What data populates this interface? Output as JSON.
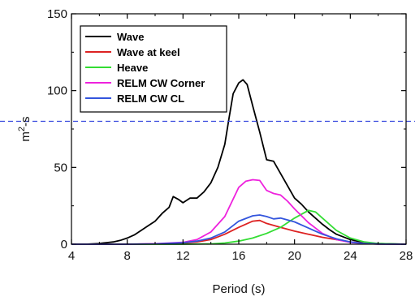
{
  "chart_data": {
    "type": "line",
    "title": "",
    "xlabel": "Period (s)",
    "ylabel": "m²-s",
    "ylabel_base": "m",
    "ylabel_sup": "2",
    "ylabel_suffix": "-s",
    "xlim": [
      4,
      28
    ],
    "ylim": [
      0,
      150
    ],
    "xticks": [
      4,
      8,
      12,
      16,
      20,
      24,
      28
    ],
    "xtick_labels": [
      "4",
      "8",
      "12",
      "16",
      "20",
      "24",
      "28"
    ],
    "yticks": [
      0,
      50,
      100,
      150
    ],
    "ytick_labels": [
      "0",
      "50",
      "100",
      "150"
    ],
    "grid": false,
    "legend_position": "top-left",
    "reference_line": {
      "y": 80,
      "style": "dashed",
      "color": "#3344dd"
    },
    "series": [
      {
        "name": "Wave",
        "color": "#000000",
        "x": [
          4,
          5,
          6,
          6.5,
          7,
          7.5,
          8,
          8.5,
          9,
          9.5,
          10,
          10.5,
          11,
          11.3,
          11.7,
          12,
          12.5,
          13,
          13.5,
          14,
          14.5,
          15,
          15.3,
          15.6,
          16,
          16.3,
          16.6,
          17,
          17.5,
          18,
          18.5,
          19,
          19.5,
          20,
          20.5,
          21,
          21.5,
          22,
          22.5,
          23,
          24,
          25,
          26,
          27,
          28
        ],
        "y": [
          0,
          0,
          0.5,
          1,
          1.5,
          2.5,
          4,
          6,
          9,
          12,
          15,
          20,
          24,
          31,
          29,
          27,
          30,
          30,
          34,
          40,
          50,
          65,
          82,
          98,
          105,
          107,
          104,
          90,
          73,
          55,
          54,
          46,
          38,
          30,
          26,
          21,
          17,
          13,
          9.5,
          6.5,
          3,
          1,
          0.5,
          0.2,
          0
        ]
      },
      {
        "name": "Wave at keel",
        "color": "#dd2222",
        "x": [
          4,
          8,
          10,
          12,
          13,
          14,
          15,
          16,
          17,
          17.5,
          18,
          19,
          20,
          21,
          22,
          23,
          24,
          25,
          26,
          28
        ],
        "y": [
          0,
          0,
          0.2,
          0.8,
          1.5,
          3,
          6.5,
          11,
          15,
          15.5,
          13.5,
          11,
          8.5,
          6.5,
          4.5,
          3,
          1.5,
          0.6,
          0.2,
          0
        ]
      },
      {
        "name": "Heave",
        "color": "#33dd33",
        "x": [
          4,
          12,
          14,
          15,
          16,
          17,
          18,
          19,
          20,
          21,
          21.5,
          22,
          23,
          24,
          25,
          26,
          28
        ],
        "y": [
          0,
          0,
          0.2,
          0.8,
          2,
          4,
          7,
          11,
          17,
          22,
          21,
          17,
          9,
          4,
          1.5,
          0.4,
          0
        ]
      },
      {
        "name": "RELM CW Corner",
        "color": "#ee22dd",
        "x": [
          4,
          8,
          10,
          12,
          13,
          14,
          15,
          16,
          16.5,
          17,
          17.5,
          18,
          18.5,
          19,
          19.5,
          20,
          21,
          22,
          23,
          24,
          25,
          26,
          28
        ],
        "y": [
          0,
          0,
          0.3,
          1.2,
          3,
          8,
          18,
          37,
          41,
          42,
          41.5,
          35,
          33,
          32,
          28,
          23,
          14,
          7,
          3,
          1.2,
          0.4,
          0.1,
          0
        ]
      },
      {
        "name": "RELM CW CL",
        "color": "#3355dd",
        "x": [
          4,
          8,
          10,
          12,
          13,
          14,
          15,
          16,
          17,
          17.5,
          18,
          18.5,
          19,
          20,
          21,
          22,
          23,
          24,
          25,
          26,
          28
        ],
        "y": [
          0,
          0,
          0.2,
          1,
          2,
          4,
          8,
          15,
          18.5,
          19,
          18,
          16.5,
          17,
          14.5,
          10.5,
          6.5,
          3.5,
          1.5,
          0.5,
          0.1,
          0
        ]
      }
    ]
  }
}
